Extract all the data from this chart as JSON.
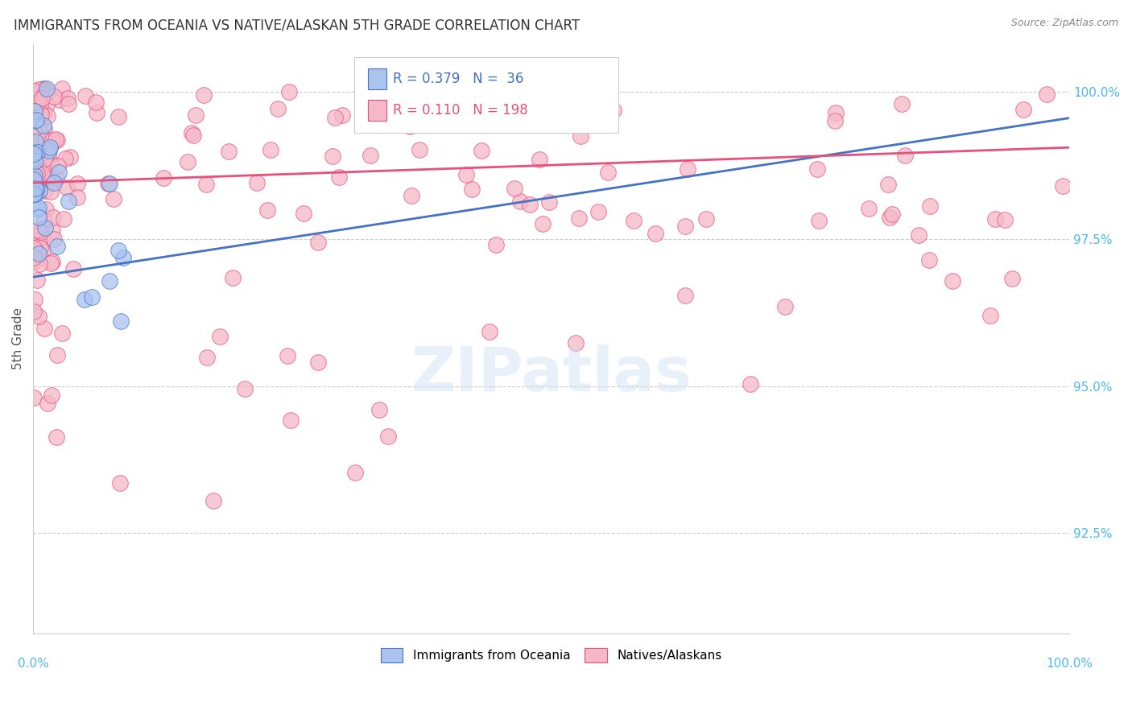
{
  "title": "IMMIGRANTS FROM OCEANIA VS NATIVE/ALASKAN 5TH GRADE CORRELATION CHART",
  "source_text": "Source: ZipAtlas.com",
  "ylabel": "5th Grade",
  "ylabel_right_values": [
    1.0,
    0.975,
    0.95,
    0.925
  ],
  "ylabel_right_labels": [
    "100.0%",
    "97.5%",
    "95.0%",
    "92.5%"
  ],
  "xmin": 0.0,
  "xmax": 1.0,
  "ymin": 0.908,
  "ymax": 1.008,
  "r_oceania": 0.379,
  "n_oceania": 36,
  "r_native": 0.11,
  "n_native": 198,
  "oceania_color": "#aac4ef",
  "native_color": "#f5b8c8",
  "trendline_oceania_color": "#4472c4",
  "trendline_native_color": "#e8507a",
  "oceania_edge_color": "#4472c4",
  "native_edge_color": "#e8507a",
  "legend_label_oceania": "Immigrants from Oceania",
  "legend_label_native": "Natives/Alaskans",
  "watermark": "ZIPatlas",
  "right_label_color": "#4db8ee",
  "grid_color": "#cccccc",
  "title_color": "#333333",
  "source_color": "#888888",
  "ylabel_color": "#555555",
  "oceania_trend_x0": 0.0,
  "oceania_trend_y0": 0.9685,
  "oceania_trend_x1": 1.0,
  "oceania_trend_y1": 0.9955,
  "native_trend_x0": 0.0,
  "native_trend_y0": 0.9845,
  "native_trend_x1": 1.0,
  "native_trend_y1": 0.9905
}
